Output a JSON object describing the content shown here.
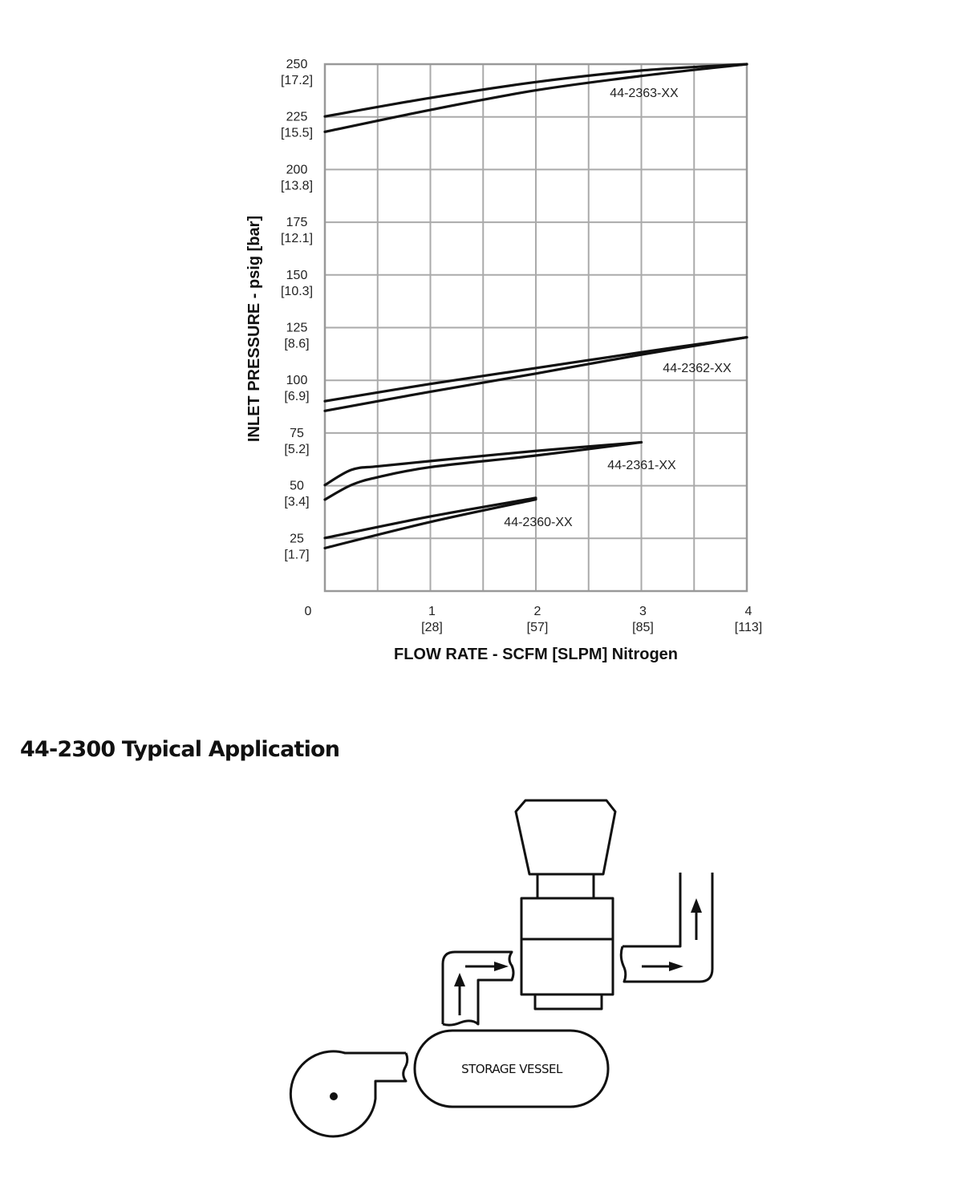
{
  "chart_data": {
    "type": "line",
    "xlabel": "FLOW RATE - SCFM [SLPM] Nitrogen",
    "ylabel": "INLET PRESSURE - psig [bar]",
    "xlim": [
      0,
      4
    ],
    "ylim": [
      0,
      250
    ],
    "grid": true,
    "x_ticks": [
      {
        "value": 0,
        "label": "0",
        "sub": ""
      },
      {
        "value": 1,
        "label": "1",
        "sub": "[28]"
      },
      {
        "value": 2,
        "label": "2",
        "sub": "[57]"
      },
      {
        "value": 3,
        "label": "3",
        "sub": "[85]"
      },
      {
        "value": 4,
        "label": "4",
        "sub": "[113]"
      }
    ],
    "y_ticks": [
      {
        "value": 25,
        "label": "25",
        "sub": "[1.7]"
      },
      {
        "value": 50,
        "label": "50",
        "sub": "[3.4]"
      },
      {
        "value": 75,
        "label": "75",
        "sub": "[5.2]"
      },
      {
        "value": 100,
        "label": "100",
        "sub": "[6.9]"
      },
      {
        "value": 125,
        "label": "125",
        "sub": "[8.6]"
      },
      {
        "value": 150,
        "label": "150",
        "sub": "[10.3]"
      },
      {
        "value": 175,
        "label": "175",
        "sub": "[12.1]"
      },
      {
        "value": 200,
        "label": "200",
        "sub": "[13.8]"
      },
      {
        "value": 225,
        "label": "225",
        "sub": "[15.5]"
      },
      {
        "value": 250,
        "label": "250",
        "sub": "[17.2]"
      }
    ],
    "series": [
      {
        "name": "44-2363-XX",
        "curves": [
          {
            "x": [
              0,
              1,
              2,
              3,
              4
            ],
            "y": [
              225.2,
              234,
              241.5,
              247,
              250
            ]
          },
          {
            "x": [
              0,
              1,
              2,
              3,
              4
            ],
            "y": [
              217.9,
              228.3,
              237.6,
              244.4,
              250
            ]
          }
        ]
      },
      {
        "name": "44-2362-XX",
        "curves": [
          {
            "x": [
              0,
              1,
              2,
              3,
              4
            ],
            "y": [
              90.1,
              98.3,
              105.8,
              113.3,
              120.4
            ]
          },
          {
            "x": [
              0,
              1,
              2,
              3,
              4
            ],
            "y": [
              85.5,
              94.6,
              103.2,
              112.2,
              120.4
            ]
          }
        ]
      },
      {
        "name": "44-2361-XX",
        "curves": [
          {
            "x": [
              0,
              0.25,
              0.5,
              1,
              2,
              3
            ],
            "y": [
              50.3,
              57.5,
              59.2,
              61.7,
              66.5,
              70.6
            ]
          },
          {
            "x": [
              0,
              0.25,
              0.5,
              1,
              2,
              3
            ],
            "y": [
              43.4,
              50.3,
              54,
              58.8,
              64.3,
              70.6
            ]
          }
        ]
      },
      {
        "name": "44-2360-XX",
        "curves": [
          {
            "x": [
              0,
              1,
              2
            ],
            "y": [
              25.2,
              35.4,
              44.2
            ]
          },
          {
            "x": [
              0,
              1,
              2
            ],
            "y": [
              20.4,
              32.8,
              43.5
            ]
          }
        ]
      }
    ]
  },
  "section": {
    "heading": "44-2300 Typical Application"
  },
  "diagram": {
    "vessel_label": "STORAGE VESSEL"
  }
}
